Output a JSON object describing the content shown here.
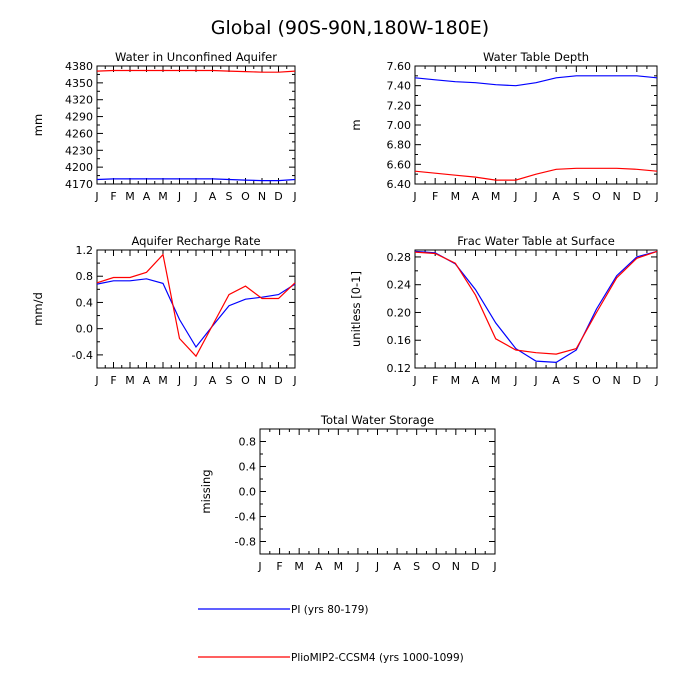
{
  "figure": {
    "title": "Global (90S-90N,180W-180E)"
  },
  "legend": [
    {
      "name": "PI (yrs 80-179)",
      "color": "#0000ff"
    },
    {
      "name": "PlioMIP2-CCSM4 (yrs 1000-1099)",
      "color": "#ff0000"
    }
  ],
  "chart_data": [
    {
      "type": "line",
      "title": "Water in Unconfined Aquifer",
      "ylabel": "mm",
      "categories": [
        "J",
        "F",
        "M",
        "A",
        "M",
        "J",
        "J",
        "A",
        "S",
        "O",
        "N",
        "D",
        "J"
      ],
      "ylim": [
        4170,
        4380
      ],
      "yticks": [
        4170,
        4200,
        4230,
        4260,
        4290,
        4320,
        4350,
        4380
      ],
      "ytick_labels": [
        "4170",
        "4200",
        "4230",
        "4260",
        "4290",
        "4320",
        "4350",
        "4380"
      ],
      "series": [
        {
          "name": "PI (yrs 80-179)",
          "color": "#0000ff",
          "values": [
            4178,
            4179,
            4179,
            4179,
            4179,
            4179,
            4179,
            4179,
            4178,
            4177,
            4176,
            4176,
            4178
          ]
        },
        {
          "name": "PlioMIP2-CCSM4 (yrs 1000-1099)",
          "color": "#ff0000",
          "values": [
            4371,
            4372,
            4372,
            4372,
            4372,
            4372,
            4372,
            4372,
            4371,
            4370,
            4369,
            4369,
            4371
          ]
        }
      ]
    },
    {
      "type": "line",
      "title": "Water Table Depth",
      "ylabel": "m",
      "categories": [
        "J",
        "F",
        "M",
        "A",
        "M",
        "J",
        "J",
        "A",
        "S",
        "O",
        "N",
        "D",
        "J"
      ],
      "ylim": [
        6.4,
        7.6
      ],
      "yticks": [
        6.4,
        6.6,
        6.8,
        7.0,
        7.2,
        7.4,
        7.6
      ],
      "ytick_labels": [
        "6.40",
        "6.60",
        "6.80",
        "7.00",
        "7.20",
        "7.40",
        "7.60"
      ],
      "series": [
        {
          "name": "PI (yrs 80-179)",
          "color": "#0000ff",
          "values": [
            7.48,
            7.46,
            7.44,
            7.43,
            7.41,
            7.4,
            7.43,
            7.48,
            7.5,
            7.5,
            7.5,
            7.5,
            7.48
          ]
        },
        {
          "name": "PlioMIP2-CCSM4 (yrs 1000-1099)",
          "color": "#ff0000",
          "values": [
            6.53,
            6.51,
            6.49,
            6.47,
            6.44,
            6.44,
            6.5,
            6.55,
            6.56,
            6.56,
            6.56,
            6.55,
            6.53
          ]
        }
      ]
    },
    {
      "type": "line",
      "title": "Aquifer Recharge Rate",
      "ylabel": "mm/d",
      "categories": [
        "J",
        "F",
        "M",
        "A",
        "M",
        "J",
        "J",
        "A",
        "S",
        "O",
        "N",
        "D",
        "J"
      ],
      "ylim": [
        -0.6,
        1.2
      ],
      "yticks": [
        -0.4,
        0.0,
        0.4,
        0.8,
        1.2
      ],
      "ytick_labels": [
        "-0.4",
        "0.0",
        "0.4",
        "0.8",
        "1.2"
      ],
      "series": [
        {
          "name": "PI (yrs 80-179)",
          "color": "#0000ff",
          "values": [
            0.68,
            0.73,
            0.73,
            0.76,
            0.69,
            0.14,
            -0.28,
            0.04,
            0.35,
            0.45,
            0.48,
            0.52,
            0.68
          ]
        },
        {
          "name": "PlioMIP2-CCSM4 (yrs 1000-1099)",
          "color": "#ff0000",
          "values": [
            0.7,
            0.78,
            0.78,
            0.86,
            1.13,
            -0.15,
            -0.42,
            0.05,
            0.52,
            0.65,
            0.46,
            0.46,
            0.7
          ]
        }
      ]
    },
    {
      "type": "line",
      "title": "Frac Water Table at Surface",
      "ylabel": "unitless [0-1]",
      "categories": [
        "J",
        "F",
        "M",
        "A",
        "M",
        "J",
        "J",
        "A",
        "S",
        "O",
        "N",
        "D",
        "J"
      ],
      "ylim": [
        0.12,
        0.29
      ],
      "yticks": [
        0.12,
        0.16,
        0.2,
        0.24,
        0.28
      ],
      "ytick_labels": [
        "0.12",
        "0.16",
        "0.20",
        "0.24",
        "0.28"
      ],
      "series": [
        {
          "name": "PI (yrs 80-179)",
          "color": "#0000ff",
          "values": [
            0.288,
            0.286,
            0.27,
            0.233,
            0.185,
            0.148,
            0.13,
            0.128,
            0.146,
            0.205,
            0.253,
            0.28,
            0.288
          ]
        },
        {
          "name": "PlioMIP2-CCSM4 (yrs 1000-1099)",
          "color": "#ff0000",
          "values": [
            0.287,
            0.285,
            0.271,
            0.225,
            0.162,
            0.146,
            0.142,
            0.14,
            0.148,
            0.2,
            0.25,
            0.278,
            0.288
          ]
        }
      ]
    },
    {
      "type": "line",
      "title": "Total Water Storage",
      "ylabel": "missing",
      "categories": [
        "J",
        "F",
        "M",
        "A",
        "M",
        "J",
        "J",
        "A",
        "S",
        "O",
        "N",
        "D",
        "J"
      ],
      "ylim": [
        -1.0,
        1.0
      ],
      "yticks": [
        -0.8,
        -0.4,
        0.0,
        0.4,
        0.8
      ],
      "ytick_labels": [
        "-0.8",
        "-0.4",
        "0.0",
        "0.4",
        "0.8"
      ],
      "series": []
    }
  ]
}
